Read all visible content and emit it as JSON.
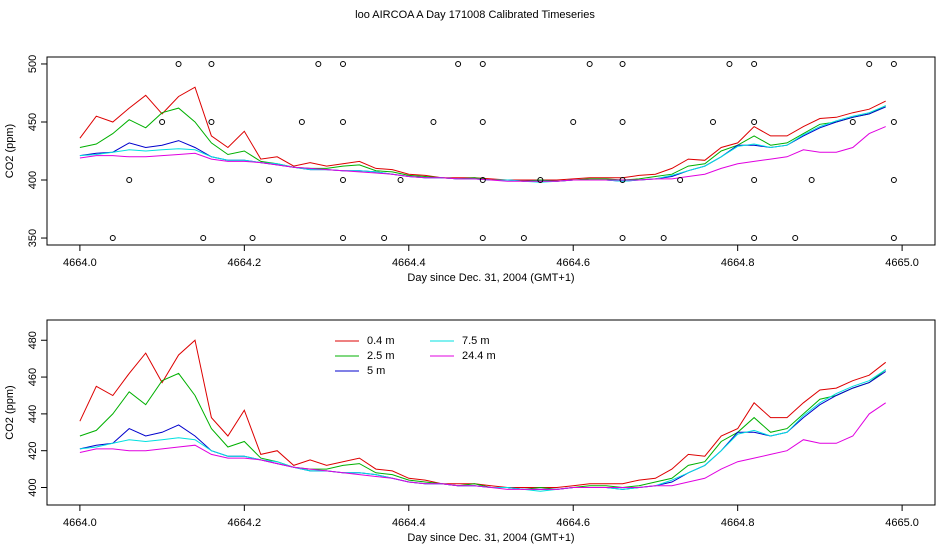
{
  "title": "loo AIRCOA A  Day 171008  Calibrated Timeseries",
  "chart_data": [
    {
      "type": "line",
      "ylabel": "CO2 (ppm)",
      "xlabel": "Day since Dec. 31, 2004 (GMT+1)",
      "xlim": [
        4663.96,
        4665.04
      ],
      "ylim": [
        344,
        506
      ],
      "xticks": [
        {
          "value": 4664,
          "label": "4664.0"
        },
        4664.2,
        4664.4,
        4664.6,
        4664.8,
        {
          "value": 4665,
          "label": "4665.0"
        }
      ],
      "yticks": [
        350,
        400,
        450,
        500
      ],
      "x": [
        4664.0,
        4664.02,
        4664.04,
        4664.06,
        4664.08,
        4664.1,
        4664.12,
        4664.14,
        4664.16,
        4664.18,
        4664.2,
        4664.22,
        4664.24,
        4664.26,
        4664.28,
        4664.3,
        4664.32,
        4664.34,
        4664.36,
        4664.38,
        4664.4,
        4664.42,
        4664.44,
        4664.46,
        4664.48,
        4664.5,
        4664.52,
        4664.54,
        4664.56,
        4664.58,
        4664.6,
        4664.62,
        4664.64,
        4664.66,
        4664.68,
        4664.7,
        4664.72,
        4664.74,
        4664.76,
        4664.78,
        4664.8,
        4664.82,
        4664.84,
        4664.86,
        4664.88,
        4664.9,
        4664.92,
        4664.94,
        4664.96,
        4664.98
      ],
      "series": [
        {
          "color": "#dd0000",
          "values": [
            436,
            455,
            450,
            462,
            473,
            457,
            472,
            480,
            438,
            428,
            442,
            418,
            420,
            412,
            415,
            412,
            414,
            416,
            410,
            409,
            405,
            404,
            402,
            402,
            402,
            401,
            400,
            400,
            400,
            400,
            401,
            402,
            402,
            402,
            404,
            405,
            410,
            418,
            417,
            428,
            432,
            446,
            438,
            438,
            446,
            453,
            454,
            458,
            461,
            468
          ]
        },
        {
          "color": "#00b000",
          "values": [
            428,
            431,
            440,
            452,
            445,
            458,
            462,
            450,
            432,
            422,
            425,
            416,
            414,
            411,
            410,
            410,
            412,
            413,
            408,
            407,
            404,
            403,
            402,
            401,
            402,
            400,
            400,
            399,
            400,
            399,
            400,
            401,
            401,
            400,
            401,
            403,
            405,
            412,
            414,
            425,
            430,
            438,
            430,
            432,
            440,
            448,
            450,
            454,
            457,
            464
          ]
        },
        {
          "color": "#0000cc",
          "values": [
            421,
            423,
            424,
            432,
            428,
            430,
            434,
            428,
            420,
            417,
            417,
            415,
            413,
            411,
            409,
            409,
            408,
            408,
            407,
            405,
            403,
            402,
            402,
            401,
            401,
            400,
            400,
            399,
            399,
            399,
            400,
            400,
            400,
            399,
            400,
            401,
            403,
            408,
            412,
            420,
            430,
            430,
            428,
            430,
            438,
            445,
            450,
            454,
            457,
            463
          ]
        },
        {
          "color": "#00e0e0",
          "values": [
            421,
            422,
            424,
            426,
            425,
            426,
            427,
            426,
            420,
            417,
            417,
            415,
            414,
            411,
            409,
            409,
            408,
            408,
            407,
            405,
            403,
            402,
            402,
            401,
            401,
            400,
            400,
            399,
            398,
            399,
            400,
            400,
            400,
            399,
            400,
            401,
            404,
            408,
            412,
            420,
            429,
            431,
            428,
            430,
            439,
            446,
            451,
            455,
            458,
            464
          ]
        },
        {
          "color": "#e000e0",
          "values": [
            419,
            421,
            421,
            420,
            420,
            421,
            422,
            423,
            418,
            416,
            416,
            415,
            413,
            411,
            410,
            409,
            408,
            407,
            406,
            405,
            403,
            402,
            402,
            401,
            401,
            400,
            399,
            399,
            399,
            399,
            400,
            400,
            400,
            400,
            400,
            401,
            401,
            403,
            405,
            410,
            414,
            416,
            418,
            420,
            426,
            424,
            424,
            428,
            440,
            446
          ]
        }
      ],
      "markers": {
        "color": "#000000",
        "x": [
          4664.12,
          4664.16,
          4664.29,
          4664.32,
          4664.46,
          4664.49,
          4664.62,
          4664.66,
          4664.79,
          4664.82,
          4664.96,
          4664.99,
          4664.1,
          4664.16,
          4664.27,
          4664.32,
          4664.43,
          4664.49,
          4664.6,
          4664.66,
          4664.77,
          4664.82,
          4664.94,
          4664.99,
          4664.06,
          4664.16,
          4664.23,
          4664.32,
          4664.39,
          4664.49,
          4664.56,
          4664.66,
          4664.73,
          4664.82,
          4664.89,
          4664.99,
          4664.04,
          4664.15,
          4664.21,
          4664.32,
          4664.37,
          4664.49,
          4664.54,
          4664.66,
          4664.71,
          4664.82,
          4664.87,
          4664.99
        ],
        "values": [
          500,
          500,
          500,
          500,
          500,
          500,
          500,
          500,
          500,
          500,
          500,
          500,
          450,
          450,
          450,
          450,
          450,
          450,
          450,
          450,
          450,
          450,
          450,
          450,
          400,
          400,
          400,
          400,
          400,
          400,
          400,
          400,
          400,
          400,
          400,
          400,
          350,
          350,
          350,
          350,
          350,
          350,
          350,
          350,
          350,
          350,
          350,
          350
        ]
      }
    },
    {
      "type": "line",
      "ylabel": "CO2 (ppm)",
      "xlabel": "Day since Dec. 31, 2004 (GMT+1)",
      "legend": "top",
      "xlim": [
        4663.96,
        4665.04
      ],
      "ylim": [
        390.5,
        491
      ],
      "xticks": [
        {
          "value": 4664,
          "label": "4664.0"
        },
        4664.2,
        4664.4,
        4664.6,
        4664.8,
        {
          "value": 4665,
          "label": "4665.0"
        }
      ],
      "yticks": [
        400,
        420,
        440,
        460,
        480
      ],
      "x": [
        4664.0,
        4664.02,
        4664.04,
        4664.06,
        4664.08,
        4664.1,
        4664.12,
        4664.14,
        4664.16,
        4664.18,
        4664.2,
        4664.22,
        4664.24,
        4664.26,
        4664.28,
        4664.3,
        4664.32,
        4664.34,
        4664.36,
        4664.38,
        4664.4,
        4664.42,
        4664.44,
        4664.46,
        4664.48,
        4664.5,
        4664.52,
        4664.54,
        4664.56,
        4664.58,
        4664.6,
        4664.62,
        4664.64,
        4664.66,
        4664.68,
        4664.7,
        4664.72,
        4664.74,
        4664.76,
        4664.78,
        4664.8,
        4664.82,
        4664.84,
        4664.86,
        4664.88,
        4664.9,
        4664.92,
        4664.94,
        4664.96,
        4664.98
      ],
      "series": [
        {
          "name": "0.4 m",
          "color": "#dd0000",
          "values": [
            436,
            455,
            450,
            462,
            473,
            457,
            472,
            480,
            438,
            428,
            442,
            418,
            420,
            412,
            415,
            412,
            414,
            416,
            410,
            409,
            405,
            404,
            402,
            402,
            402,
            401,
            400,
            400,
            400,
            400,
            401,
            402,
            402,
            402,
            404,
            405,
            410,
            418,
            417,
            428,
            432,
            446,
            438,
            438,
            446,
            453,
            454,
            458,
            461,
            468
          ]
        },
        {
          "name": "2.5 m",
          "color": "#00b000",
          "values": [
            428,
            431,
            440,
            452,
            445,
            458,
            462,
            450,
            432,
            422,
            425,
            416,
            414,
            411,
            410,
            410,
            412,
            413,
            408,
            407,
            404,
            403,
            402,
            401,
            402,
            400,
            400,
            399,
            400,
            399,
            400,
            401,
            401,
            400,
            401,
            403,
            405,
            412,
            414,
            425,
            430,
            438,
            430,
            432,
            440,
            448,
            450,
            454,
            457,
            464
          ]
        },
        {
          "name": "5 m",
          "color": "#0000cc",
          "values": [
            421,
            423,
            424,
            432,
            428,
            430,
            434,
            428,
            420,
            417,
            417,
            415,
            413,
            411,
            409,
            409,
            408,
            408,
            407,
            405,
            403,
            402,
            402,
            401,
            401,
            400,
            400,
            399,
            399,
            399,
            400,
            400,
            400,
            399,
            400,
            401,
            403,
            408,
            412,
            420,
            430,
            430,
            428,
            430,
            438,
            445,
            450,
            454,
            457,
            463
          ]
        },
        {
          "name": "7.5 m",
          "color": "#00e0e0",
          "values": [
            421,
            422,
            424,
            426,
            425,
            426,
            427,
            426,
            420,
            417,
            417,
            415,
            414,
            411,
            409,
            409,
            408,
            408,
            407,
            405,
            403,
            402,
            402,
            401,
            401,
            400,
            400,
            399,
            398,
            399,
            400,
            400,
            400,
            399,
            400,
            401,
            404,
            408,
            412,
            420,
            429,
            431,
            428,
            430,
            439,
            446,
            451,
            455,
            458,
            464
          ]
        },
        {
          "name": "24.4 m",
          "color": "#e000e0",
          "values": [
            419,
            421,
            421,
            420,
            420,
            421,
            422,
            423,
            418,
            416,
            416,
            415,
            413,
            411,
            410,
            409,
            408,
            407,
            406,
            405,
            403,
            402,
            402,
            401,
            401,
            400,
            399,
            399,
            399,
            399,
            400,
            400,
            400,
            400,
            400,
            401,
            401,
            403,
            405,
            410,
            414,
            416,
            418,
            420,
            426,
            424,
            424,
            428,
            440,
            446
          ]
        }
      ]
    }
  ]
}
